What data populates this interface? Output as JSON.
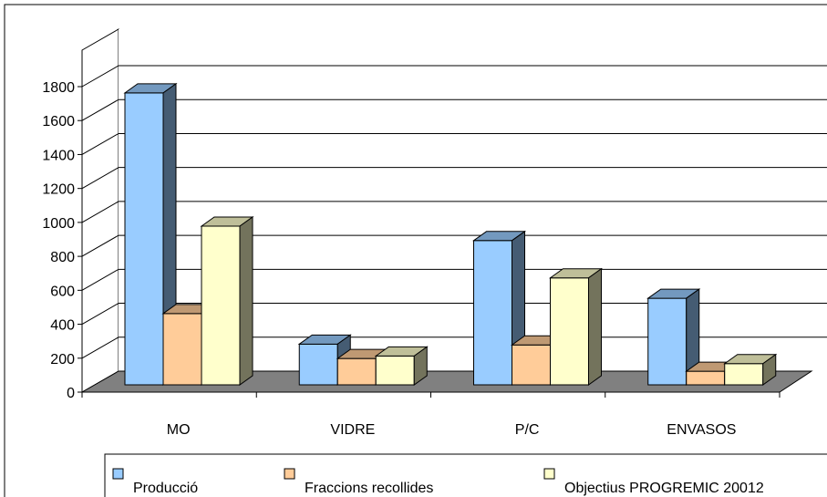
{
  "chart_data": {
    "type": "bar",
    "categories": [
      "MO",
      "VIDRE",
      "P/C",
      "ENVASOS"
    ],
    "series": [
      {
        "name": "Producció",
        "values": [
          1720,
          240,
          850,
          510
        ],
        "color": "#99CCFF"
      },
      {
        "name": "Fraccions recollides",
        "values": [
          420,
          155,
          235,
          80
        ],
        "color": "#FFCC99"
      },
      {
        "name": "Objectius PROGREMIC 20012",
        "values": [
          935,
          170,
          630,
          125
        ],
        "color": "#FFFFCC"
      }
    ],
    "y_ticks": [
      "0",
      "200",
      "400",
      "600",
      "800",
      "1000",
      "1200",
      "1400",
      "1600",
      "1800"
    ],
    "ylim": [
      0,
      1800
    ],
    "grid": true,
    "legend_position": "bottom",
    "floor_color": "#808080"
  }
}
